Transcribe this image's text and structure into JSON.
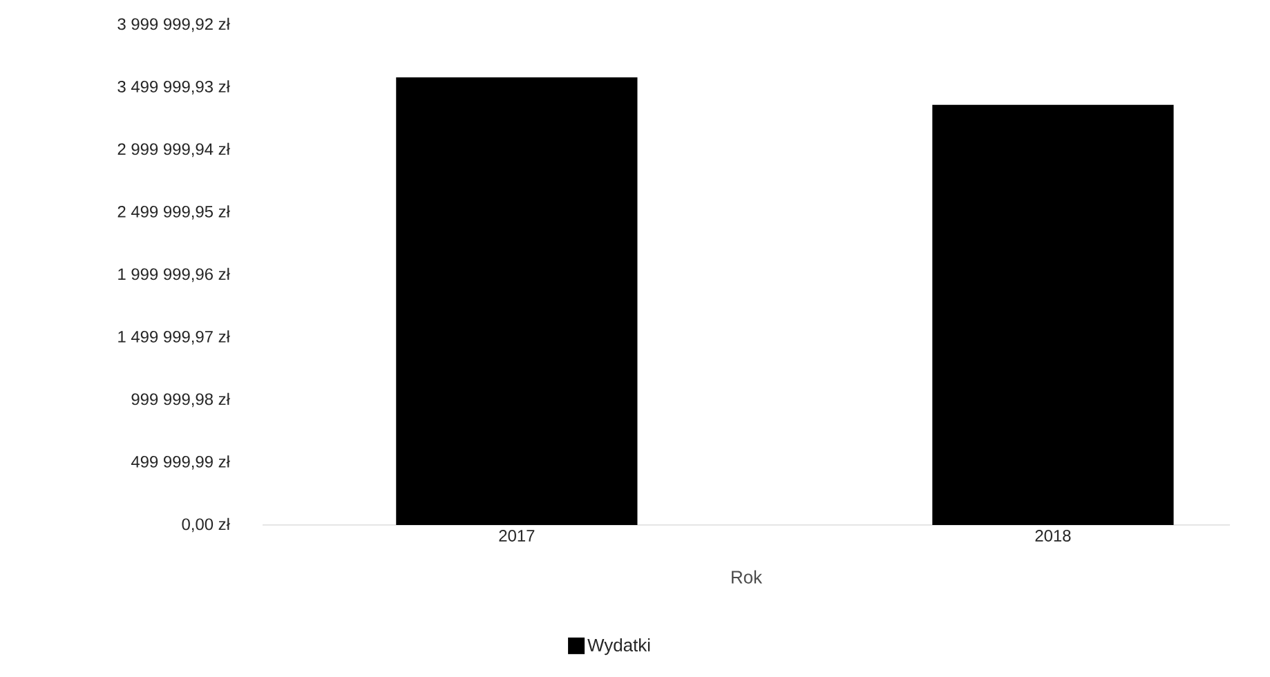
{
  "chart_data": {
    "type": "bar",
    "categories": [
      "2017",
      "2018"
    ],
    "series": [
      {
        "name": "Wydatki",
        "color": "#000000",
        "values": [
          3580000,
          3360000
        ]
      }
    ],
    "xlabel": "Rok",
    "ylim": [
      0,
      3999999.92
    ],
    "yticks": [
      {
        "value": 0,
        "label": "0,00 zł"
      },
      {
        "value": 499999.99,
        "label": "499 999,99 zł"
      },
      {
        "value": 999999.98,
        "label": "999 999,98 zł"
      },
      {
        "value": 1499999.97,
        "label": "1 499 999,97 zł"
      },
      {
        "value": 1999999.96,
        "label": "1 999 999,96 zł"
      },
      {
        "value": 2499999.95,
        "label": "2 499 999,95 zł"
      },
      {
        "value": 2999999.94,
        "label": "2 999 999,94 zł"
      },
      {
        "value": 3499999.93,
        "label": "3 499 999,93 zł"
      },
      {
        "value": 3999999.92,
        "label": "3 999 999,92 zł"
      }
    ],
    "grid": false,
    "legend": "bottom"
  }
}
